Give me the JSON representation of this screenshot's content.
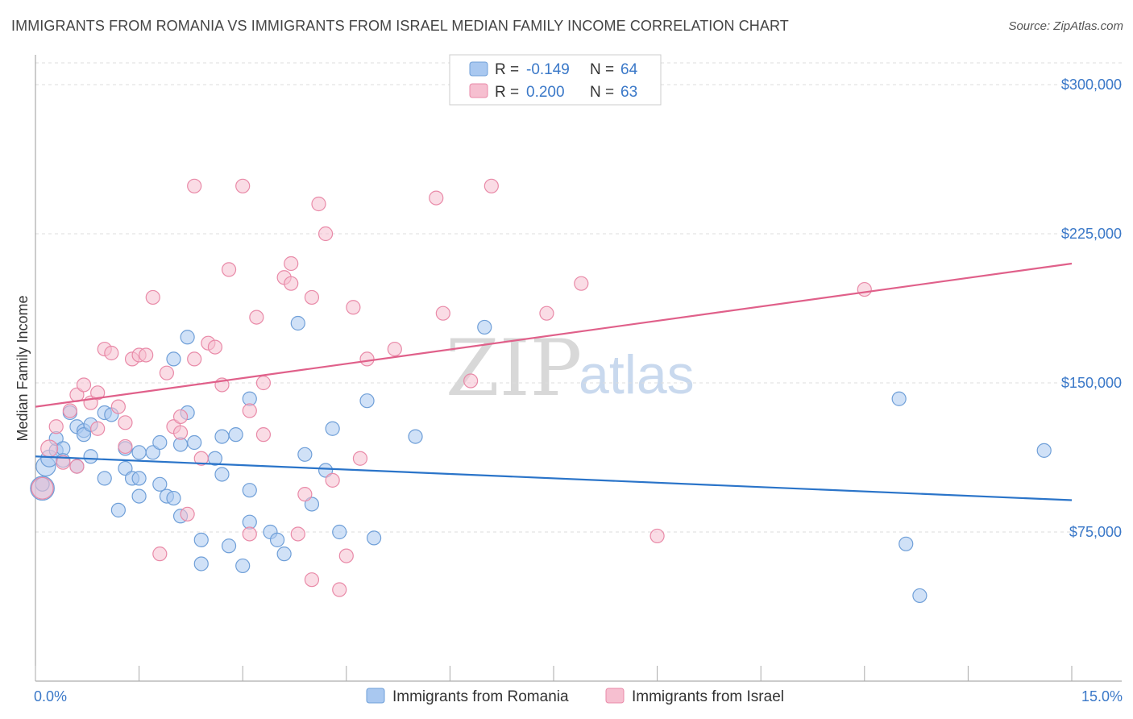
{
  "title": "IMMIGRANTS FROM ROMANIA VS IMMIGRANTS FROM ISRAEL MEDIAN FAMILY INCOME CORRELATION CHART",
  "source": "Source: ZipAtlas.com",
  "watermark": {
    "zip": "ZIP",
    "atlas": "atlas"
  },
  "legend": {
    "rows": [
      {
        "r_label": "R = ",
        "r_value": "-0.149",
        "n_label": "N = ",
        "n_value": "64"
      },
      {
        "r_label": "R = ",
        "r_value": "0.200",
        "n_label": "N = ",
        "n_value": "63"
      }
    ]
  },
  "colors": {
    "romania_fill": "#a9c8f0",
    "romania_stroke": "#6f9fd8",
    "romania_line": "#2a74c9",
    "israel_fill": "#f6bfd0",
    "israel_stroke": "#e98aa8",
    "israel_line": "#e0608a",
    "grid": "#dddddd",
    "axis": "#999999"
  },
  "chart_data": {
    "type": "scatter",
    "title": "IMMIGRANTS FROM ROMANIA VS IMMIGRANTS FROM ISRAEL MEDIAN FAMILY INCOME CORRELATION CHART",
    "xlabel": "",
    "ylabel": "Median Family Income",
    "xlim": [
      0,
      15
    ],
    "ylim": [
      0,
      315000
    ],
    "x_tick_labels": [
      "0.0%",
      "15.0%"
    ],
    "y_ticks": [
      75000,
      150000,
      225000,
      300000
    ],
    "y_tick_labels": [
      "$75,000",
      "$150,000",
      "$225,000",
      "$300,000"
    ],
    "grid": true,
    "legend_position": "top-center",
    "series": [
      {
        "name": "Immigrants from Romania",
        "r": -0.149,
        "n": 64,
        "trend": {
          "x": [
            0,
            15
          ],
          "y": [
            113000,
            91000
          ]
        },
        "points": [
          [
            0.1,
            97000,
            3
          ],
          [
            0.15,
            108000,
            2
          ],
          [
            0.2,
            112000,
            1.5
          ],
          [
            0.3,
            116000,
            1
          ],
          [
            0.3,
            122000,
            1
          ],
          [
            0.4,
            117000,
            1
          ],
          [
            0.4,
            111000,
            1
          ],
          [
            0.5,
            135000,
            1
          ],
          [
            0.6,
            128000,
            1
          ],
          [
            0.6,
            108000,
            1
          ],
          [
            0.7,
            126000,
            1
          ],
          [
            0.7,
            124000,
            1
          ],
          [
            0.8,
            113000,
            1
          ],
          [
            0.8,
            129000,
            1
          ],
          [
            1.0,
            102000,
            1
          ],
          [
            1.0,
            135000,
            1
          ],
          [
            1.1,
            134000,
            1
          ],
          [
            1.2,
            86000,
            1
          ],
          [
            1.3,
            107000,
            1
          ],
          [
            1.3,
            117000,
            1
          ],
          [
            1.4,
            102000,
            1
          ],
          [
            1.5,
            115000,
            1
          ],
          [
            1.5,
            102000,
            1
          ],
          [
            1.5,
            93000,
            1
          ],
          [
            1.7,
            115000,
            1
          ],
          [
            1.8,
            99000,
            1
          ],
          [
            1.8,
            120000,
            1
          ],
          [
            1.9,
            93000,
            1
          ],
          [
            2.0,
            92000,
            1
          ],
          [
            2.0,
            162000,
            1
          ],
          [
            2.1,
            83000,
            1
          ],
          [
            2.1,
            119000,
            1
          ],
          [
            2.2,
            135000,
            1
          ],
          [
            2.2,
            173000,
            1
          ],
          [
            2.3,
            120000,
            1
          ],
          [
            2.4,
            59000,
            1
          ],
          [
            2.4,
            71000,
            1
          ],
          [
            2.6,
            112000,
            1
          ],
          [
            2.7,
            104000,
            1
          ],
          [
            2.7,
            123000,
            1
          ],
          [
            2.8,
            68000,
            1
          ],
          [
            2.9,
            124000,
            1
          ],
          [
            3.0,
            58000,
            1
          ],
          [
            3.1,
            96000,
            1
          ],
          [
            3.1,
            80000,
            1
          ],
          [
            3.1,
            142000,
            1
          ],
          [
            3.4,
            75000,
            1
          ],
          [
            3.5,
            71000,
            1
          ],
          [
            3.6,
            64000,
            1
          ],
          [
            3.8,
            180000,
            1
          ],
          [
            3.9,
            114000,
            1
          ],
          [
            4.0,
            89000,
            1
          ],
          [
            4.2,
            106000,
            1
          ],
          [
            4.3,
            127000,
            1
          ],
          [
            4.4,
            75000,
            1
          ],
          [
            4.8,
            141000,
            1
          ],
          [
            4.9,
            72000,
            1
          ],
          [
            5.5,
            123000,
            1
          ],
          [
            6.5,
            178000,
            1
          ],
          [
            12.5,
            142000,
            1
          ],
          [
            12.6,
            69000,
            1
          ],
          [
            12.8,
            43000,
            1
          ],
          [
            14.6,
            116000,
            1
          ],
          [
            0.1,
            99000,
            1
          ]
        ]
      },
      {
        "name": "Immigrants from Israel",
        "r": 0.2,
        "n": 63,
        "trend": {
          "x": [
            0,
            15
          ],
          "y": [
            138000,
            210000
          ]
        },
        "points": [
          [
            0.1,
            97000,
            2.5
          ],
          [
            0.2,
            117000,
            1.5
          ],
          [
            0.3,
            128000,
            1
          ],
          [
            0.4,
            110000,
            1
          ],
          [
            0.5,
            136000,
            1
          ],
          [
            0.6,
            108000,
            1
          ],
          [
            0.6,
            144000,
            1
          ],
          [
            0.7,
            149000,
            1
          ],
          [
            0.8,
            140000,
            1
          ],
          [
            0.9,
            145000,
            1
          ],
          [
            0.9,
            127000,
            1
          ],
          [
            1.0,
            167000,
            1
          ],
          [
            1.1,
            165000,
            1
          ],
          [
            1.2,
            138000,
            1
          ],
          [
            1.3,
            118000,
            1
          ],
          [
            1.3,
            130000,
            1
          ],
          [
            1.4,
            162000,
            1
          ],
          [
            1.5,
            164000,
            1
          ],
          [
            1.6,
            164000,
            1
          ],
          [
            1.7,
            193000,
            1
          ],
          [
            1.8,
            64000,
            1
          ],
          [
            1.9,
            155000,
            1
          ],
          [
            2.0,
            128000,
            1
          ],
          [
            2.1,
            125000,
            1
          ],
          [
            2.1,
            133000,
            1
          ],
          [
            2.2,
            84000,
            1
          ],
          [
            2.3,
            249000,
            1
          ],
          [
            2.3,
            162000,
            1
          ],
          [
            2.4,
            112000,
            1
          ],
          [
            2.5,
            170000,
            1
          ],
          [
            2.6,
            168000,
            1
          ],
          [
            2.7,
            149000,
            1
          ],
          [
            2.8,
            207000,
            1
          ],
          [
            3.0,
            249000,
            1
          ],
          [
            3.1,
            74000,
            1
          ],
          [
            3.1,
            136000,
            1
          ],
          [
            3.2,
            183000,
            1
          ],
          [
            3.3,
            124000,
            1
          ],
          [
            3.3,
            150000,
            1
          ],
          [
            3.6,
            203000,
            1
          ],
          [
            3.7,
            210000,
            1
          ],
          [
            3.7,
            200000,
            1
          ],
          [
            3.8,
            74000,
            1
          ],
          [
            3.9,
            94000,
            1
          ],
          [
            4.0,
            193000,
            1
          ],
          [
            4.0,
            51000,
            1
          ],
          [
            4.1,
            240000,
            1
          ],
          [
            4.2,
            225000,
            1
          ],
          [
            4.3,
            101000,
            1
          ],
          [
            4.4,
            46000,
            1
          ],
          [
            4.5,
            63000,
            1
          ],
          [
            4.6,
            188000,
            1
          ],
          [
            4.7,
            112000,
            1
          ],
          [
            4.8,
            162000,
            1
          ],
          [
            5.2,
            167000,
            1
          ],
          [
            5.8,
            243000,
            1
          ],
          [
            5.9,
            185000,
            1
          ],
          [
            6.3,
            151000,
            1
          ],
          [
            6.6,
            249000,
            1
          ],
          [
            7.4,
            185000,
            1
          ],
          [
            7.9,
            200000,
            1
          ],
          [
            9.0,
            73000,
            1
          ],
          [
            12.0,
            197000,
            1
          ]
        ]
      }
    ]
  },
  "bottom_legend": [
    {
      "label": "Immigrants from Romania"
    },
    {
      "label": "Immigrants from Israel"
    }
  ]
}
